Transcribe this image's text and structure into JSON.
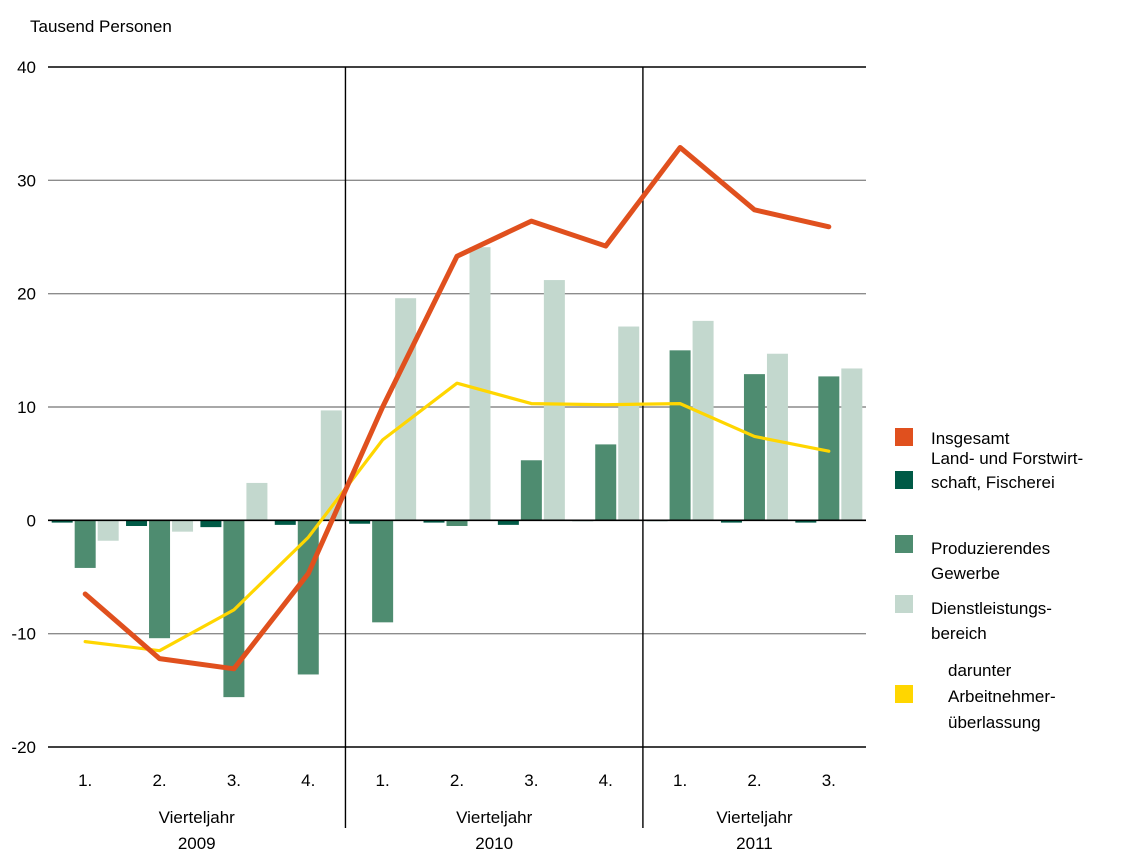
{
  "chart_data": {
    "type": "bar",
    "ylabel": "Tausend Personen",
    "ylim": [
      -20,
      40
    ],
    "yticks": [
      -20,
      -10,
      0,
      10,
      20,
      30,
      40
    ],
    "grid": true,
    "legend_position": "right",
    "categories": [
      "1.",
      "2.",
      "3.",
      "4.",
      "1.",
      "2.",
      "3.",
      "4.",
      "1.",
      "2.",
      "3."
    ],
    "groups": [
      {
        "line1": "Vierteljahr",
        "line2": "2009",
        "count": 4
      },
      {
        "line1": "Vierteljahr",
        "line2": "2010",
        "count": 4
      },
      {
        "line1": "Vierteljahr",
        "line2": "2011",
        "count": 3
      }
    ],
    "series": [
      {
        "name": "Land- und Forstwirtschaft, Fischerei",
        "legend_lines": [
          "Land- und Forstwirt-",
          "schaft, Fischerei"
        ],
        "kind": "bar",
        "color": "#005a46",
        "values": [
          -0.2,
          -0.5,
          -0.6,
          -0.4,
          -0.3,
          -0.2,
          -0.4,
          0.0,
          0.0,
          -0.2,
          -0.2
        ]
      },
      {
        "name": "Produzierendes Gewerbe",
        "legend_lines": [
          "Produzierendes",
          "Gewerbe"
        ],
        "kind": "bar",
        "color": "#4e8c70",
        "values": [
          -4.2,
          -10.4,
          -15.6,
          -13.6,
          -9.0,
          -0.5,
          5.3,
          6.7,
          15.0,
          12.9,
          12.7
        ]
      },
      {
        "name": "Dienstleistungsbereich",
        "legend_lines": [
          "Dienstleistungs-",
          "bereich"
        ],
        "kind": "bar",
        "color": "#c3d8ce",
        "values": [
          -1.8,
          -1.0,
          3.3,
          9.7,
          19.6,
          24.1,
          21.2,
          17.1,
          17.6,
          14.7,
          13.4
        ]
      },
      {
        "name": "Insgesamt",
        "legend_lines": [
          "Insgesamt"
        ],
        "kind": "line",
        "color": "#e0501e",
        "values": [
          -6.5,
          -12.2,
          -13.1,
          -4.7,
          10.0,
          23.3,
          26.4,
          24.2,
          32.9,
          27.4,
          25.9
        ]
      },
      {
        "name": "darunter Arbeitnehmerüberlassung",
        "legend_lines": [
          "darunter",
          "Arbeitnehmer-",
          "überlassung"
        ],
        "kind": "line",
        "color": "#ffd600",
        "values": [
          -10.7,
          -11.5,
          -7.9,
          -1.5,
          7.1,
          12.1,
          10.3,
          10.2,
          10.3,
          7.4,
          6.1
        ]
      }
    ],
    "legend_order": [
      "Insgesamt",
      "Land- und Forstwirtschaft, Fischerei",
      "Produzierendes Gewerbe",
      "Dienstleistungsbereich",
      "darunter Arbeitnehmerüberlassung"
    ]
  }
}
